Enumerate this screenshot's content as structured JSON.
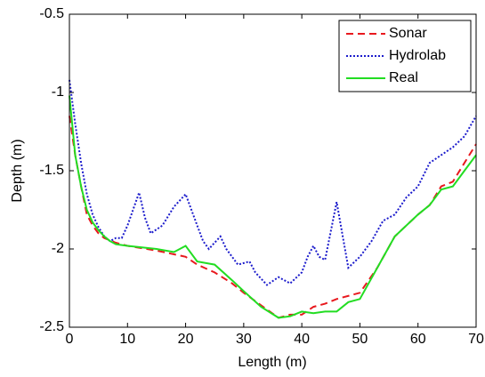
{
  "chart_data": {
    "type": "line",
    "xlabel": "Length (m)",
    "ylabel": "Depth (m)",
    "xlim": [
      0,
      70
    ],
    "xticks": [
      0,
      10,
      20,
      30,
      40,
      50,
      60,
      70
    ],
    "ylim": [
      -2.5,
      -0.5
    ],
    "yticks": [
      -2.5,
      -2,
      -1.5,
      -1,
      -0.5
    ],
    "legend": "upper right",
    "series": [
      {
        "name": "Sonar",
        "color": "#e8191e",
        "style": "dashed",
        "x": [
          0,
          1,
          2,
          3,
          4,
          5,
          6,
          8,
          10,
          15,
          20,
          22,
          25,
          28,
          30,
          33,
          36,
          38,
          40,
          42,
          44,
          46,
          50,
          53,
          56,
          60,
          62,
          64,
          66,
          68,
          70
        ],
        "values": [
          -1.15,
          -1.4,
          -1.6,
          -1.78,
          -1.85,
          -1.9,
          -1.93,
          -1.96,
          -1.98,
          -2.01,
          -2.05,
          -2.1,
          -2.15,
          -2.22,
          -2.28,
          -2.36,
          -2.44,
          -2.42,
          -2.42,
          -2.37,
          -2.35,
          -2.32,
          -2.28,
          -2.12,
          -1.92,
          -1.78,
          -1.72,
          -1.6,
          -1.57,
          -1.45,
          -1.33
        ]
      },
      {
        "name": "Hydrolab",
        "color": "#1c1ccc",
        "style": "dotted",
        "x": [
          0,
          1,
          2,
          3,
          4,
          5,
          6,
          7,
          8,
          9,
          10,
          12,
          13,
          14,
          16,
          18,
          20,
          22,
          23,
          24,
          26,
          27,
          28,
          29,
          31,
          32,
          34,
          36,
          38,
          40,
          41,
          42,
          43,
          44,
          46,
          48,
          50,
          52,
          54,
          56,
          58,
          60,
          62,
          64,
          66,
          68,
          70
        ],
        "values": [
          -0.92,
          -1.2,
          -1.45,
          -1.65,
          -1.78,
          -1.86,
          -1.92,
          -1.95,
          -1.93,
          -1.93,
          -1.85,
          -1.64,
          -1.8,
          -1.9,
          -1.85,
          -1.73,
          -1.65,
          -1.85,
          -1.95,
          -2.0,
          -1.92,
          -2.0,
          -2.05,
          -2.1,
          -2.08,
          -2.15,
          -2.23,
          -2.18,
          -2.22,
          -2.15,
          -2.05,
          -1.98,
          -2.05,
          -2.07,
          -1.7,
          -2.12,
          -2.05,
          -1.95,
          -1.82,
          -1.78,
          -1.67,
          -1.6,
          -1.45,
          -1.4,
          -1.35,
          -1.28,
          -1.15
        ]
      },
      {
        "name": "Real",
        "color": "#22dd22",
        "style": "solid",
        "x": [
          0,
          1,
          2,
          3,
          4,
          5,
          6,
          7,
          8,
          10,
          15,
          18,
          20,
          22,
          25,
          28,
          30,
          33,
          36,
          38,
          40,
          42,
          44,
          46,
          48,
          50,
          53,
          56,
          60,
          62,
          64,
          66,
          68,
          70
        ],
        "values": [
          -1.02,
          -1.4,
          -1.6,
          -1.75,
          -1.83,
          -1.88,
          -1.92,
          -1.95,
          -1.97,
          -1.98,
          -2.0,
          -2.02,
          -1.98,
          -2.08,
          -2.1,
          -2.2,
          -2.27,
          -2.37,
          -2.44,
          -2.43,
          -2.4,
          -2.41,
          -2.4,
          -2.4,
          -2.34,
          -2.32,
          -2.12,
          -1.92,
          -1.78,
          -1.72,
          -1.62,
          -1.6,
          -1.5,
          -1.4
        ]
      }
    ]
  }
}
